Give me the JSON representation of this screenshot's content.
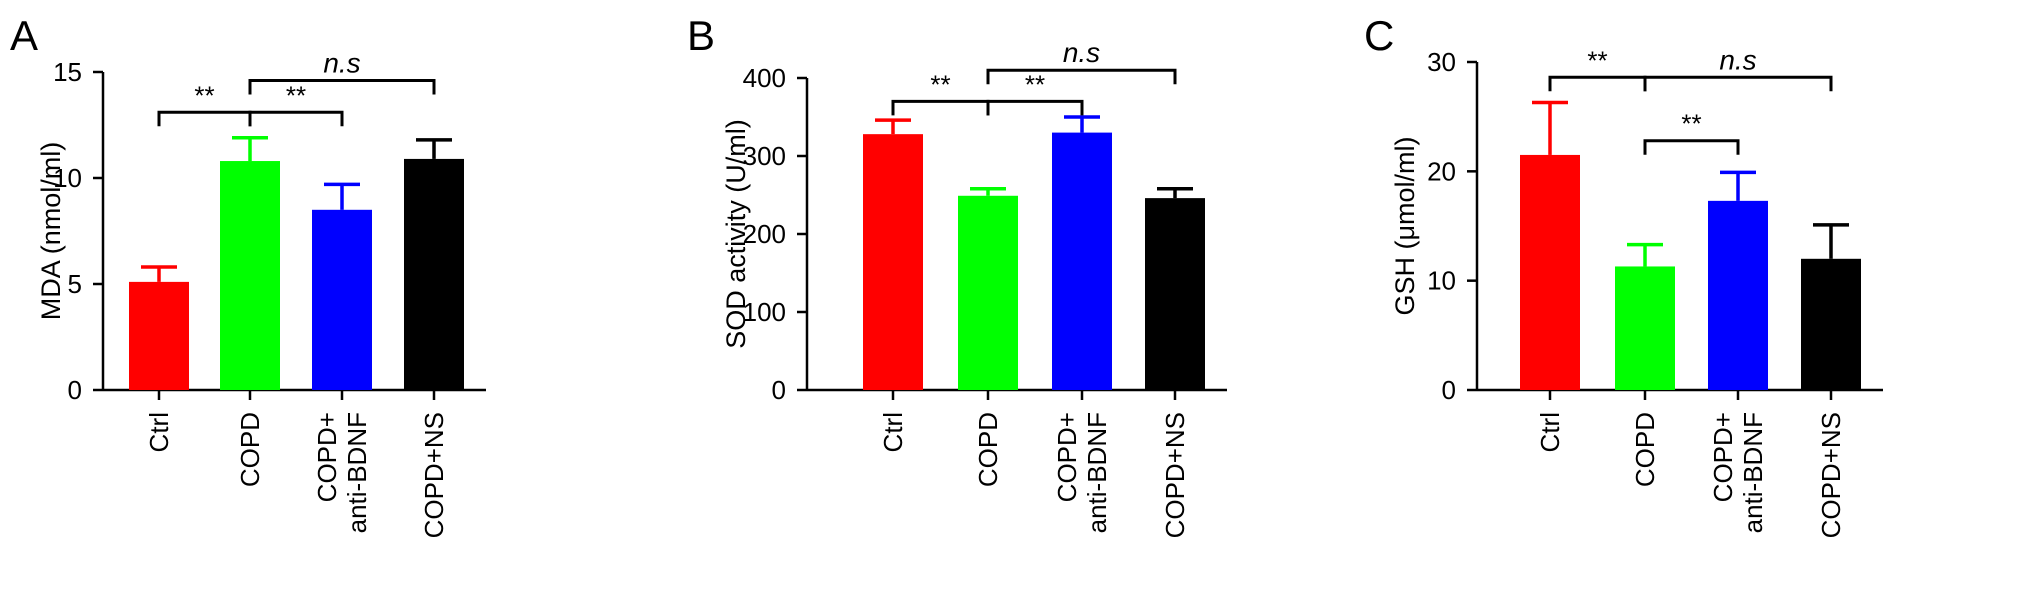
{
  "chart_data": [
    {
      "type": "bar",
      "panel_label": "A",
      "ylabel": "MDA (nmol/ml)",
      "ylim": [
        0,
        15
      ],
      "yticks": [
        0,
        5,
        10,
        15
      ],
      "categories": [
        [
          "Ctrl"
        ],
        [
          "COPD"
        ],
        [
          "COPD+",
          "anti-BDNF"
        ],
        [
          "COPD+NS"
        ]
      ],
      "values": [
        5.1,
        10.8,
        8.5,
        10.9
      ],
      "errors": [
        0.7,
        1.1,
        1.2,
        0.9
      ],
      "colors": [
        "#ff0000",
        "#00ff00",
        "#0000ff",
        "#000000"
      ],
      "brackets": [
        {
          "from": 0,
          "to": 1,
          "level": 13.1,
          "label": "**"
        },
        {
          "from": 1,
          "to": 2,
          "level": 13.1,
          "label": "**"
        },
        {
          "from": 1,
          "to": 3,
          "level": 14.6,
          "label": "n.s"
        }
      ]
    },
    {
      "type": "bar",
      "panel_label": "B",
      "ylabel": "SOD activity (U/ml)",
      "ylim": [
        0,
        400
      ],
      "yticks": [
        0,
        100,
        200,
        300,
        400
      ],
      "categories": [
        [
          "Ctrl"
        ],
        [
          "COPD"
        ],
        [
          "COPD+",
          "anti-BDNF"
        ],
        [
          "COPD+NS"
        ]
      ],
      "values": [
        328,
        249,
        330,
        246
      ],
      "errors": [
        18,
        9,
        20,
        12
      ],
      "colors": [
        "#ff0000",
        "#00ff00",
        "#0000ff",
        "#000000"
      ],
      "brackets": [
        {
          "from": 0,
          "to": 1,
          "level": 370,
          "label": "**"
        },
        {
          "from": 1,
          "to": 2,
          "level": 370,
          "label": "**"
        },
        {
          "from": 1,
          "to": 3,
          "level": 410,
          "label": "n.s"
        }
      ]
    },
    {
      "type": "bar",
      "panel_label": "C",
      "ylabel": "GSH (μmol/ml)",
      "ylim": [
        0,
        30
      ],
      "yticks": [
        0,
        10,
        20,
        30
      ],
      "categories": [
        [
          "Ctrl"
        ],
        [
          "COPD"
        ],
        [
          "COPD+",
          "anti-BDNF"
        ],
        [
          "COPD+NS"
        ]
      ],
      "values": [
        21.5,
        11.3,
        17.3,
        12.0
      ],
      "errors": [
        4.8,
        2.0,
        2.6,
        3.1
      ],
      "colors": [
        "#ff0000",
        "#00ff00",
        "#0000ff",
        "#000000"
      ],
      "brackets": [
        {
          "from": 0,
          "to": 1,
          "level": 28.6,
          "label": "**"
        },
        {
          "from": 1,
          "to": 3,
          "level": 28.6,
          "label": "n.s"
        },
        {
          "from": 1,
          "to": 2,
          "level": 22.8,
          "label": "**"
        }
      ]
    }
  ]
}
